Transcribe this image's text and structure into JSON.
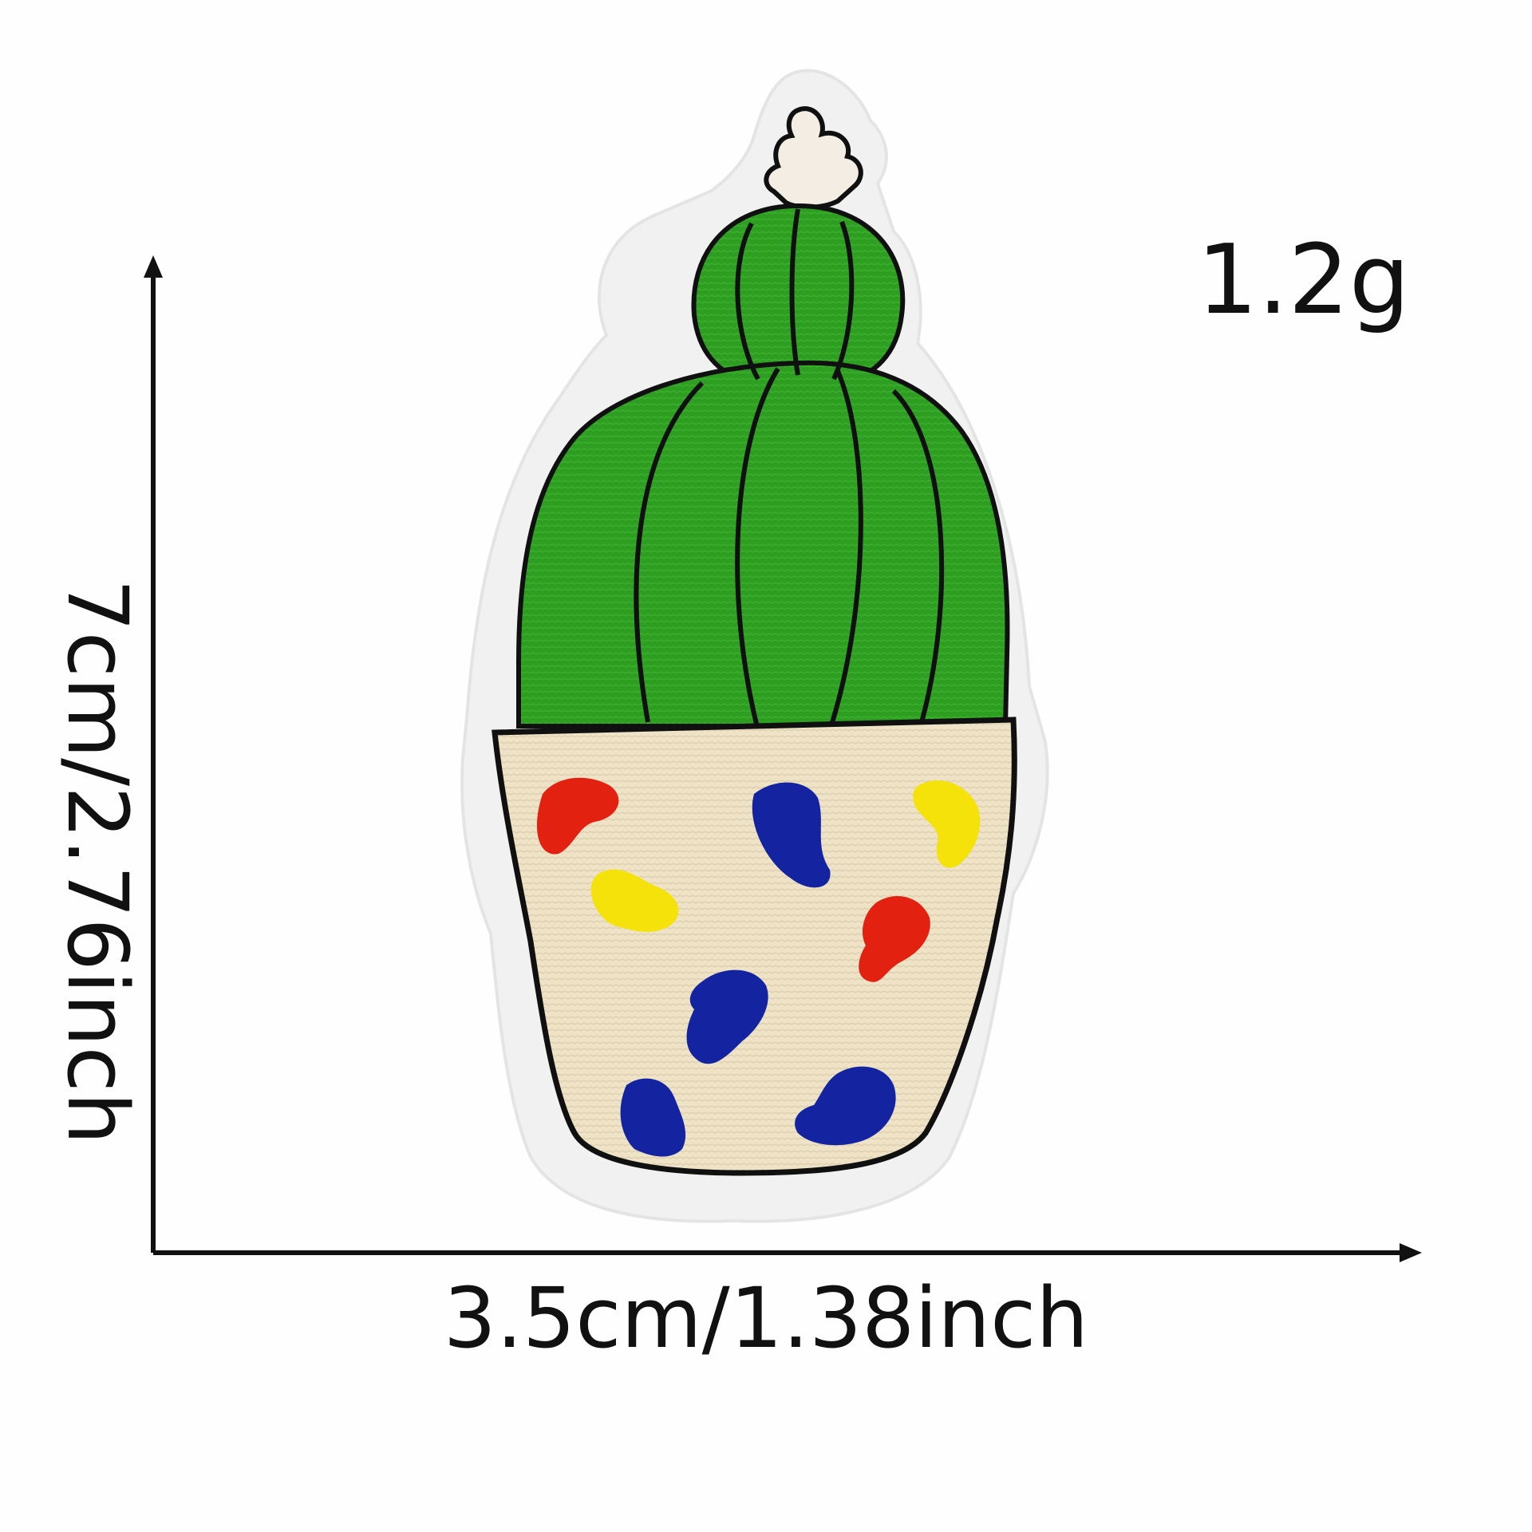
{
  "labels": {
    "weight": "1.2g",
    "height": "7cm/2.76inch",
    "width": "3.5cm/1.38inch"
  },
  "colors": {
    "background": "#fefefe",
    "felt_backing": "#f1f1f1",
    "cactus_green": "#2e9e22",
    "cactus_dark": "#1f7a17",
    "flower_white": "#f4ede4",
    "pot_cream": "#eee3c7",
    "outline": "#101010",
    "spot_red": "#e32110",
    "spot_blue": "#1424a0",
    "spot_yellow": "#f4e20a"
  }
}
